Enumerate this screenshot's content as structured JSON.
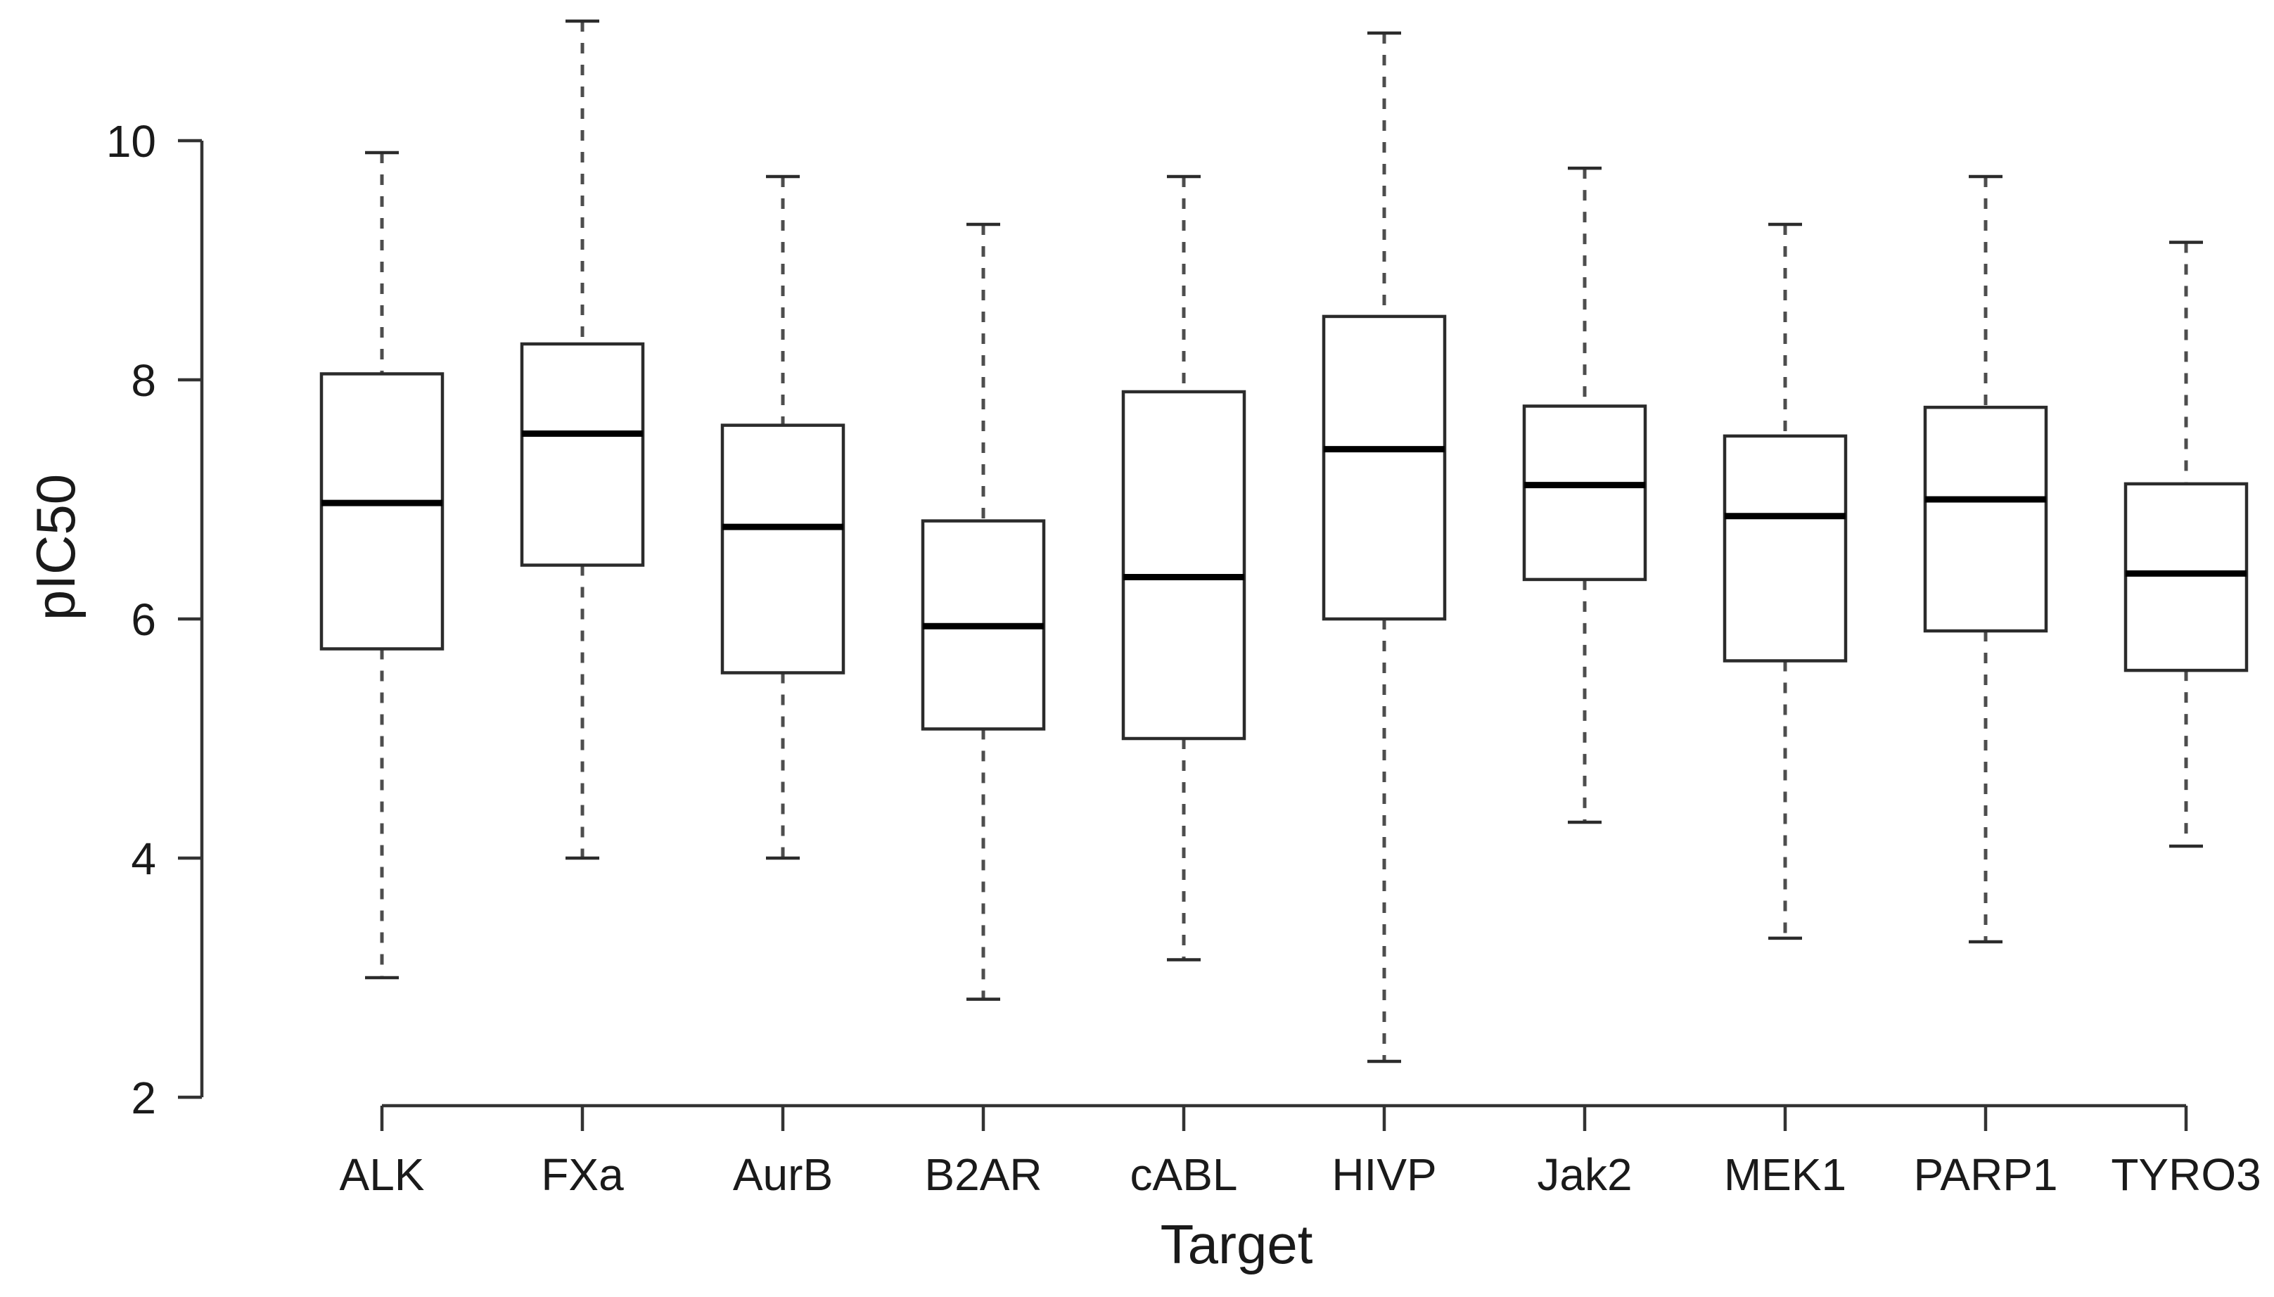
{
  "chart_data": {
    "type": "boxplot",
    "title": "",
    "xlabel": "Target",
    "ylabel": "pIC50",
    "ylim": [
      2,
      11.1
    ],
    "yticks": [
      2,
      4,
      6,
      8,
      10
    ],
    "grid": false,
    "legend": "none",
    "categories": [
      "ALK",
      "FXa",
      "AurB",
      "B2AR",
      "cABL",
      "HIVP",
      "Jak2",
      "MEK1",
      "PARP1",
      "TYRO3"
    ],
    "boxes": [
      {
        "label": "ALK",
        "whisker_low": 3.0,
        "q1": 5.75,
        "median": 6.97,
        "q3": 8.05,
        "whisker_high": 9.9
      },
      {
        "label": "FXa",
        "whisker_low": 4.0,
        "q1": 6.45,
        "median": 7.55,
        "q3": 8.3,
        "whisker_high": 11.0
      },
      {
        "label": "AurB",
        "whisker_low": 4.0,
        "q1": 5.55,
        "median": 6.77,
        "q3": 7.62,
        "whisker_high": 9.7
      },
      {
        "label": "B2AR",
        "whisker_low": 2.82,
        "q1": 5.08,
        "median": 5.94,
        "q3": 6.82,
        "whisker_high": 9.3
      },
      {
        "label": "cABL",
        "whisker_low": 3.15,
        "q1": 5.0,
        "median": 6.35,
        "q3": 7.9,
        "whisker_high": 9.7
      },
      {
        "label": "HIVP",
        "whisker_low": 2.3,
        "q1": 6.0,
        "median": 7.42,
        "q3": 8.53,
        "whisker_high": 10.9
      },
      {
        "label": "Jak2",
        "whisker_low": 4.3,
        "q1": 6.33,
        "median": 7.12,
        "q3": 7.78,
        "whisker_high": 9.77
      },
      {
        "label": "MEK1",
        "whisker_low": 3.33,
        "q1": 5.65,
        "median": 6.86,
        "q3": 7.53,
        "whisker_high": 9.3
      },
      {
        "label": "PARP1",
        "whisker_low": 3.3,
        "q1": 5.9,
        "median": 7.0,
        "q3": 7.77,
        "whisker_high": 9.7
      },
      {
        "label": "TYRO3",
        "whisker_low": 4.1,
        "q1": 5.57,
        "median": 6.38,
        "q3": 7.13,
        "whisker_high": 9.15
      }
    ],
    "colors": {
      "background": "#ffffff",
      "box_fill": "#ffffff",
      "box_stroke": "#2b2b2b",
      "median": "#000000",
      "whisker": "#4d4d4d",
      "axis": "#333333",
      "text": "#1a1a1a"
    }
  }
}
